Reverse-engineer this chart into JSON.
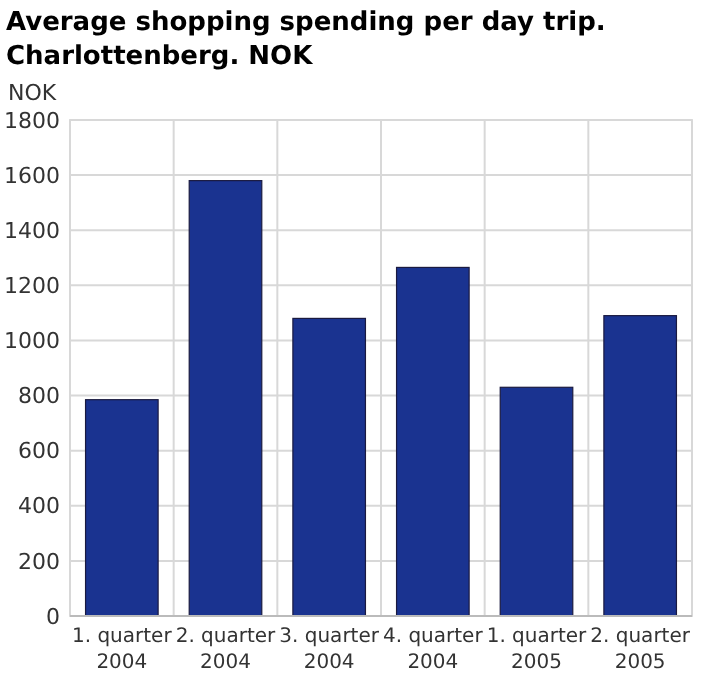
{
  "chart_data": {
    "type": "bar",
    "title": "Average shopping spending per day trip. Charlottenberg. NOK",
    "ylabel": "NOK",
    "categories": [
      "1. quarter 2004",
      "2. quarter 2004",
      "3. quarter 2004",
      "4. quarter 2004",
      "1. quarter 2005",
      "2. quarter 2005"
    ],
    "values": [
      785,
      1580,
      1080,
      1265,
      830,
      1090
    ],
    "color": "#1a3390",
    "ylim": [
      0,
      1800
    ],
    "yticks": [
      0,
      200,
      400,
      600,
      800,
      1000,
      1200,
      1400,
      1600,
      1800
    ],
    "grid": true
  }
}
